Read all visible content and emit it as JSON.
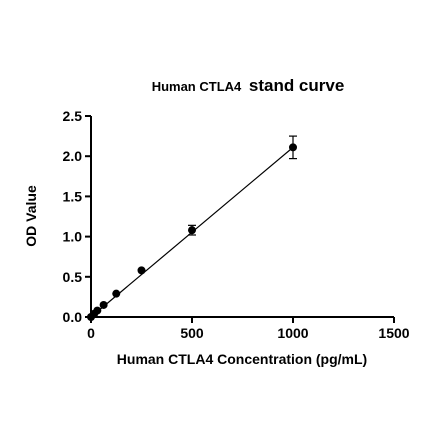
{
  "chart_data": {
    "type": "scatter",
    "title_prefix": "Human CTLA4",
    "title_suffix": "stand curve",
    "xlabel": "Human CTLA4 Concentration (pg/mL)",
    "ylabel": "OD Value",
    "xlim": [
      0,
      1500
    ],
    "ylim": [
      0,
      2.5
    ],
    "x_ticks": [
      0,
      500,
      1000,
      1500
    ],
    "x_tick_labels": [
      "0",
      "500",
      "1000",
      "1500"
    ],
    "y_ticks": [
      0,
      0.5,
      1.0,
      1.5,
      2.0,
      2.5
    ],
    "y_tick_labels": [
      "0.0",
      "0.5",
      "1.0",
      "1.5",
      "2.0",
      "2.5"
    ],
    "grid": false,
    "points": [
      {
        "x": 0,
        "y": 0.0,
        "err": 0.01
      },
      {
        "x": 15.6,
        "y": 0.04,
        "err": 0.01
      },
      {
        "x": 31.25,
        "y": 0.08,
        "err": 0.01
      },
      {
        "x": 62.5,
        "y": 0.15,
        "err": 0.01
      },
      {
        "x": 125,
        "y": 0.29,
        "err": 0.02
      },
      {
        "x": 250,
        "y": 0.58,
        "err": 0.02
      },
      {
        "x": 500,
        "y": 1.08,
        "err": 0.06
      },
      {
        "x": 1000,
        "y": 2.11,
        "err": 0.14
      }
    ],
    "fit_line": {
      "x": [
        0,
        1000
      ],
      "y": [
        0.0,
        2.11
      ]
    }
  }
}
